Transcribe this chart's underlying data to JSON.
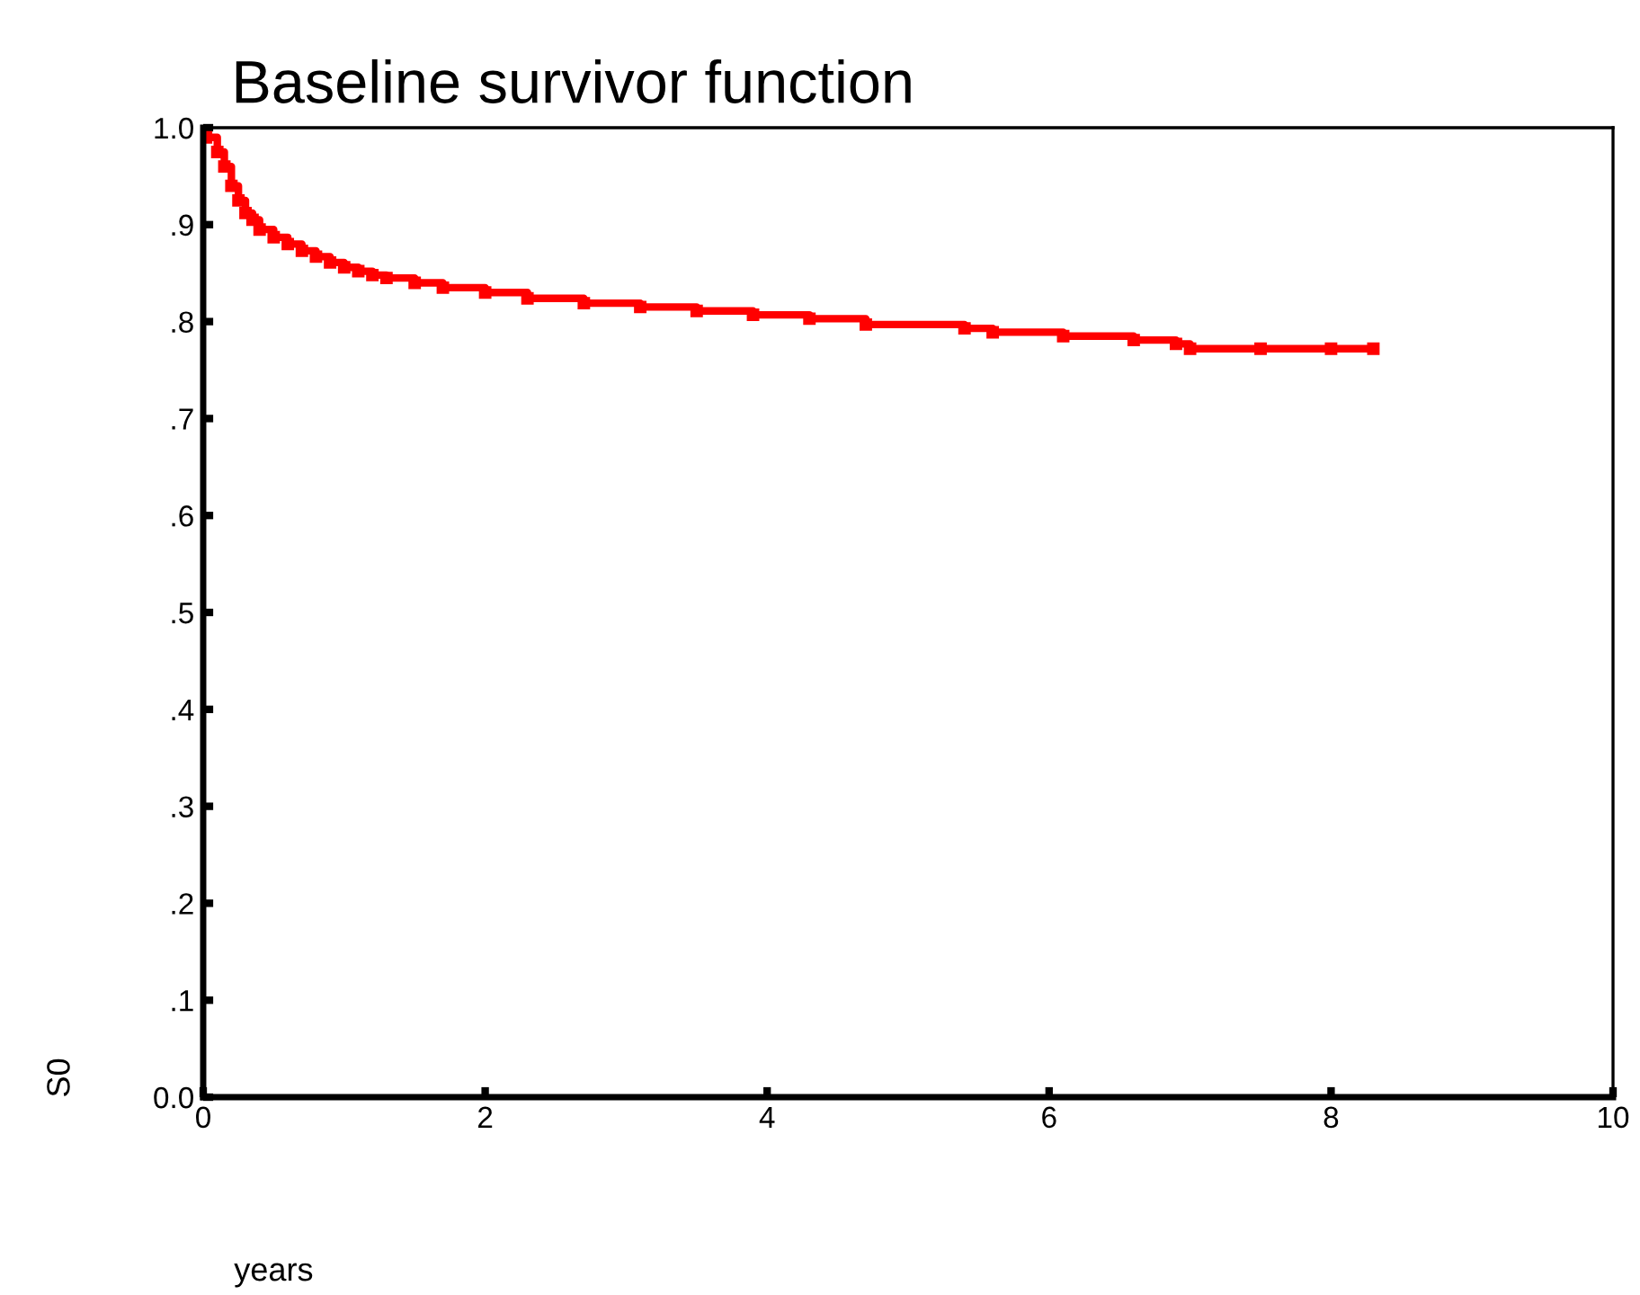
{
  "chart_data": {
    "type": "step",
    "title": "Baseline survivor function",
    "xlabel": "years",
    "ylabel": "S0",
    "xlim": [
      0,
      10
    ],
    "xticks": [
      0,
      2,
      4,
      6,
      8,
      10
    ],
    "ylim": [
      0,
      1.0
    ],
    "yticks": [
      {
        "value": 0,
        "label": "0.0"
      },
      {
        "value": 0.1,
        "label": ".1"
      },
      {
        "value": 0.2,
        "label": ".2"
      },
      {
        "value": 0.3,
        "label": ".3"
      },
      {
        "value": 0.4,
        "label": ".4"
      },
      {
        "value": 0.5,
        "label": ".5"
      },
      {
        "value": 0.6,
        "label": ".6"
      },
      {
        "value": 0.7,
        "label": ".7"
      },
      {
        "value": 0.8,
        "label": ".8"
      },
      {
        "value": 0.9,
        "label": ".9"
      },
      {
        "value": 1.0,
        "label": "1.0"
      }
    ],
    "marker": "square",
    "line_style": "solid",
    "grid": false,
    "series": [
      {
        "color": "#ff0000",
        "x": [
          0.02,
          0.1,
          0.15,
          0.2,
          0.25,
          0.3,
          0.35,
          0.4,
          0.5,
          0.6,
          0.7,
          0.8,
          0.9,
          1.0,
          1.1,
          1.2,
          1.3,
          1.5,
          1.7,
          2.0,
          2.3,
          2.7,
          3.1,
          3.5,
          3.9,
          4.3,
          4.7,
          5.4,
          5.6,
          6.1,
          6.6,
          6.9,
          7.0,
          7.5,
          8.0,
          8.3
        ],
        "values": [
          0.99,
          0.975,
          0.96,
          0.94,
          0.925,
          0.912,
          0.905,
          0.895,
          0.887,
          0.88,
          0.873,
          0.867,
          0.861,
          0.856,
          0.852,
          0.848,
          0.845,
          0.84,
          0.835,
          0.83,
          0.824,
          0.819,
          0.815,
          0.811,
          0.807,
          0.803,
          0.797,
          0.793,
          0.789,
          0.785,
          0.781,
          0.777,
          0.772,
          0.772,
          0.772,
          0.772
        ]
      }
    ]
  }
}
